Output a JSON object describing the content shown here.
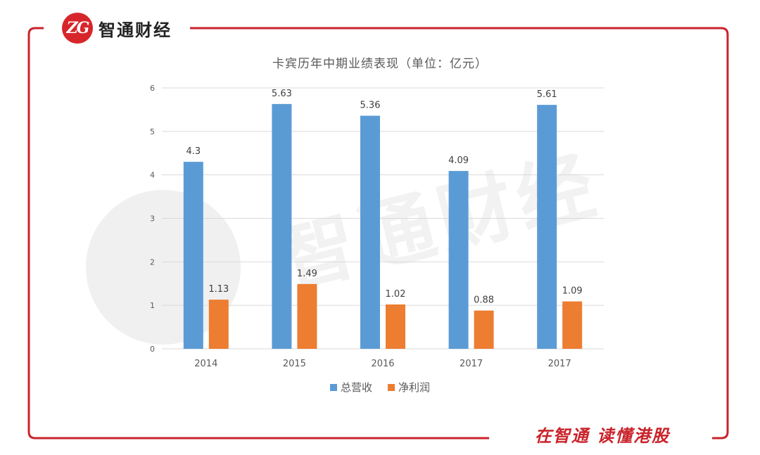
{
  "brand": {
    "logo_text": "ZG",
    "name": "智通财经"
  },
  "watermark": {
    "text": "智通财经"
  },
  "slogan": "在智通  读懂港股",
  "colors": {
    "frame": "#c9242b",
    "revenue": "#5b9bd5",
    "profit": "#ed7d31",
    "grid": "#d9d9d9",
    "text": "#595959"
  },
  "chart_data": {
    "type": "bar",
    "title": "卡宾历年中期业绩表现（单位：亿元）",
    "categories": [
      "2014",
      "2015",
      "2016",
      "2017",
      "2017"
    ],
    "series": [
      {
        "name": "总营收",
        "values": [
          4.3,
          5.63,
          5.36,
          4.09,
          5.61
        ],
        "labels": [
          "4.3",
          "5.63",
          "5.36",
          "4.09",
          "5.61"
        ]
      },
      {
        "name": "净利润",
        "values": [
          1.13,
          1.49,
          1.02,
          0.88,
          1.09
        ],
        "labels": [
          "1.13",
          "1.49",
          "1.02",
          "0.88",
          "1.09"
        ]
      }
    ],
    "ylim": [
      0,
      6
    ],
    "yticks": [
      "0",
      "1",
      "2",
      "3",
      "4",
      "5",
      "6"
    ],
    "xlabel": "",
    "ylabel": "",
    "grid": true,
    "legend": "bottom-center"
  }
}
